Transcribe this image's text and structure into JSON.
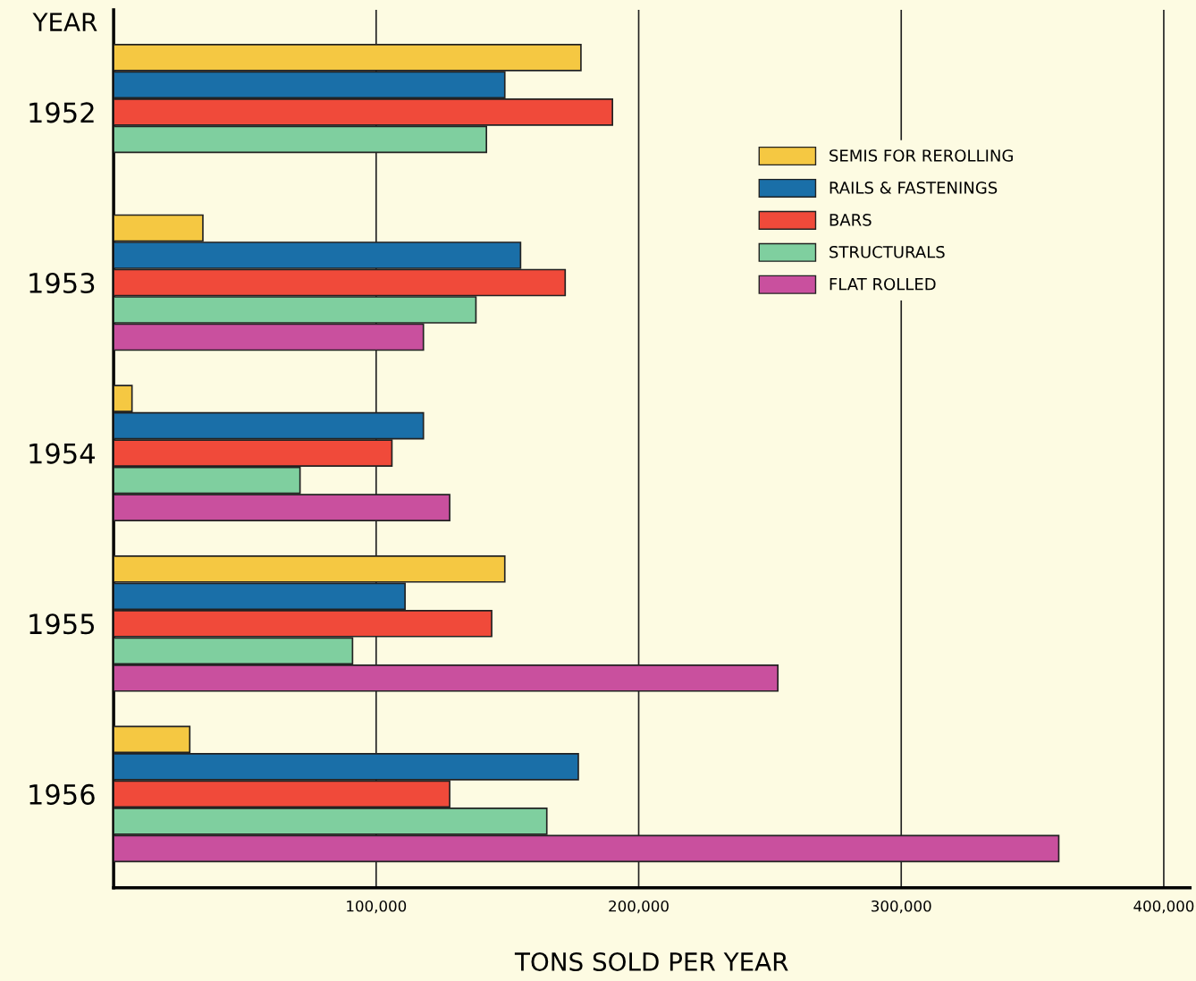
{
  "chart_data": {
    "type": "bar",
    "orientation": "horizontal",
    "xlabel": "TONS SOLD PER YEAR",
    "ylabel": "YEAR",
    "categories": [
      "1952",
      "1953",
      "1954",
      "1955",
      "1956"
    ],
    "series": [
      {
        "name": "SEMIS FOR REROLLING",
        "color": "#f5c842",
        "values": [
          178000,
          34000,
          7000,
          149000,
          29000
        ]
      },
      {
        "name": "RAILS & FASTENINGS",
        "color": "#1a6fa8",
        "values": [
          149000,
          155000,
          118000,
          111000,
          177000
        ]
      },
      {
        "name": "BARS",
        "color": "#f04a3a",
        "values": [
          190000,
          172000,
          106000,
          144000,
          128000
        ]
      },
      {
        "name": "STRUCTURALS",
        "color": "#7fcf9f",
        "values": [
          142000,
          138000,
          71000,
          91000,
          165000
        ]
      },
      {
        "name": "FLAT ROLLED",
        "color": "#c9509e",
        "values": [
          null,
          118000,
          128000,
          253000,
          360000
        ]
      }
    ],
    "xlim": [
      0,
      410000
    ],
    "xticks": [
      {
        "value": 100000,
        "label": "100,000"
      },
      {
        "value": 200000,
        "label": "200,000"
      },
      {
        "value": 300000,
        "label": "300,000"
      },
      {
        "value": 400000,
        "label": "400,000"
      }
    ],
    "grid": "x",
    "legend": "top right"
  }
}
